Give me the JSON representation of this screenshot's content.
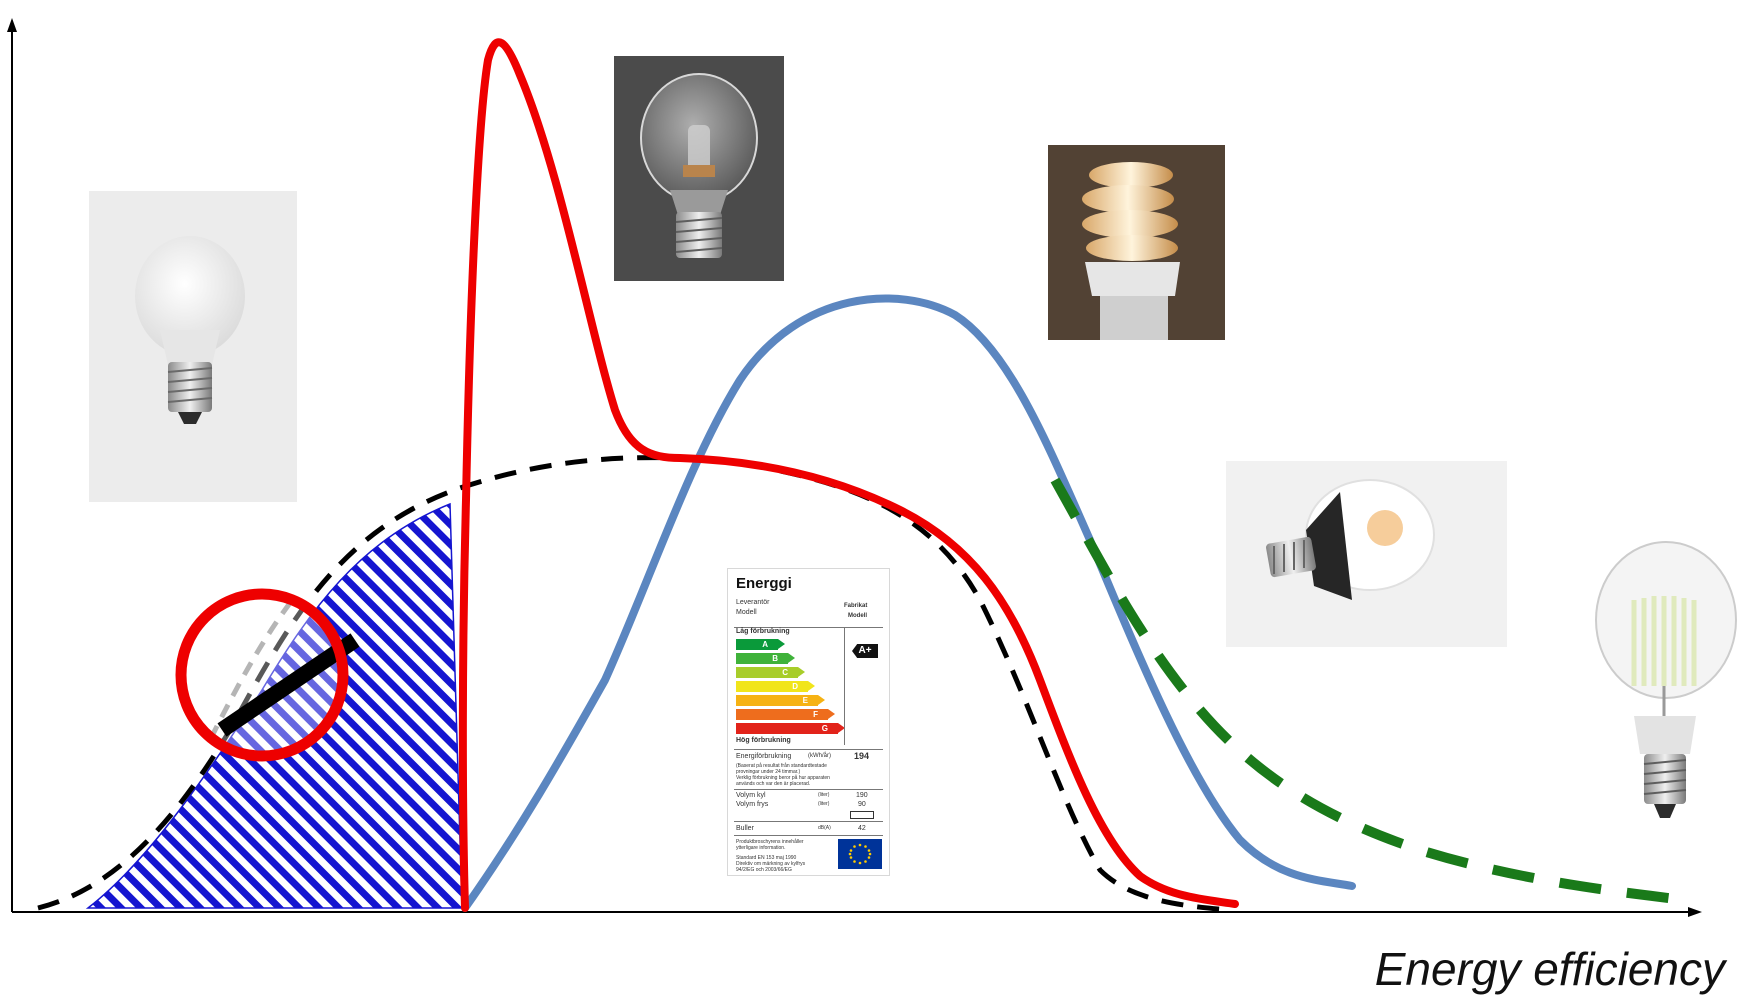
{
  "axis": {
    "x_label": "Energy efficiency"
  },
  "colors": {
    "axis": "#000000",
    "incandescent_curve": "#ee0000",
    "fluorescent_curve": "#5b86c0",
    "led_curve": "#1a7a1a",
    "reference_curve": "#000000",
    "hatch": "#1515d0",
    "ban_symbol": "#ee0000"
  },
  "icons": {
    "bulb_frosted": "frosted-incandescent-bulb-icon",
    "bulb_halogen": "halogen-bulb-icon",
    "bulb_cfl": "compact-fluorescent-bulb-icon",
    "bulb_led": "led-bulb-icon",
    "bulb_filament": "led-filament-bulb-icon",
    "ban": "prohibition-icon",
    "eu_flag": "eu-flag-icon"
  },
  "energy_label": {
    "title": "Energgi",
    "supplier": "Leverantör",
    "model": "Modell",
    "brand": "Fabrikat",
    "brand_model": "Modell",
    "low_consumption": "Låg förbrukning",
    "high_consumption": "Hög förbrukning",
    "classes": [
      "A",
      "B",
      "C",
      "D",
      "E",
      "F",
      "G"
    ],
    "class_colors": [
      "#0a9a3a",
      "#3fb23a",
      "#a8cd2a",
      "#f1e51b",
      "#f6b213",
      "#ee6d1d",
      "#e2231a"
    ],
    "rating": "A+",
    "energy_consumption": "Energiförbrukning",
    "energy_unit": "(kWh/år)",
    "energy_value": "194",
    "note_1": "(Baserat på resultat från standardtestade",
    "note_2": "provningar under 24 timmar.)",
    "note_3": "Verklig förbrukning beror på hur apparaten",
    "note_4": "används och var den är placerad.",
    "fridge_volume": "Volym kyl",
    "freezer_volume": "Volym frys",
    "volume_unit": "(liter)",
    "fridge_value": "190",
    "freezer_value": "90",
    "noise": "Buller",
    "noise_unit": "dB(A)",
    "noise_value": "42",
    "foot_1": "Produktbroschyrens innehåller",
    "foot_2": "ytterligare information.",
    "foot_3": "Standard EN 153 maj 1990",
    "foot_4": "Direktiv om märkning av kylfrys",
    "foot_5": "94/2/EG och 2003/66/EG"
  }
}
